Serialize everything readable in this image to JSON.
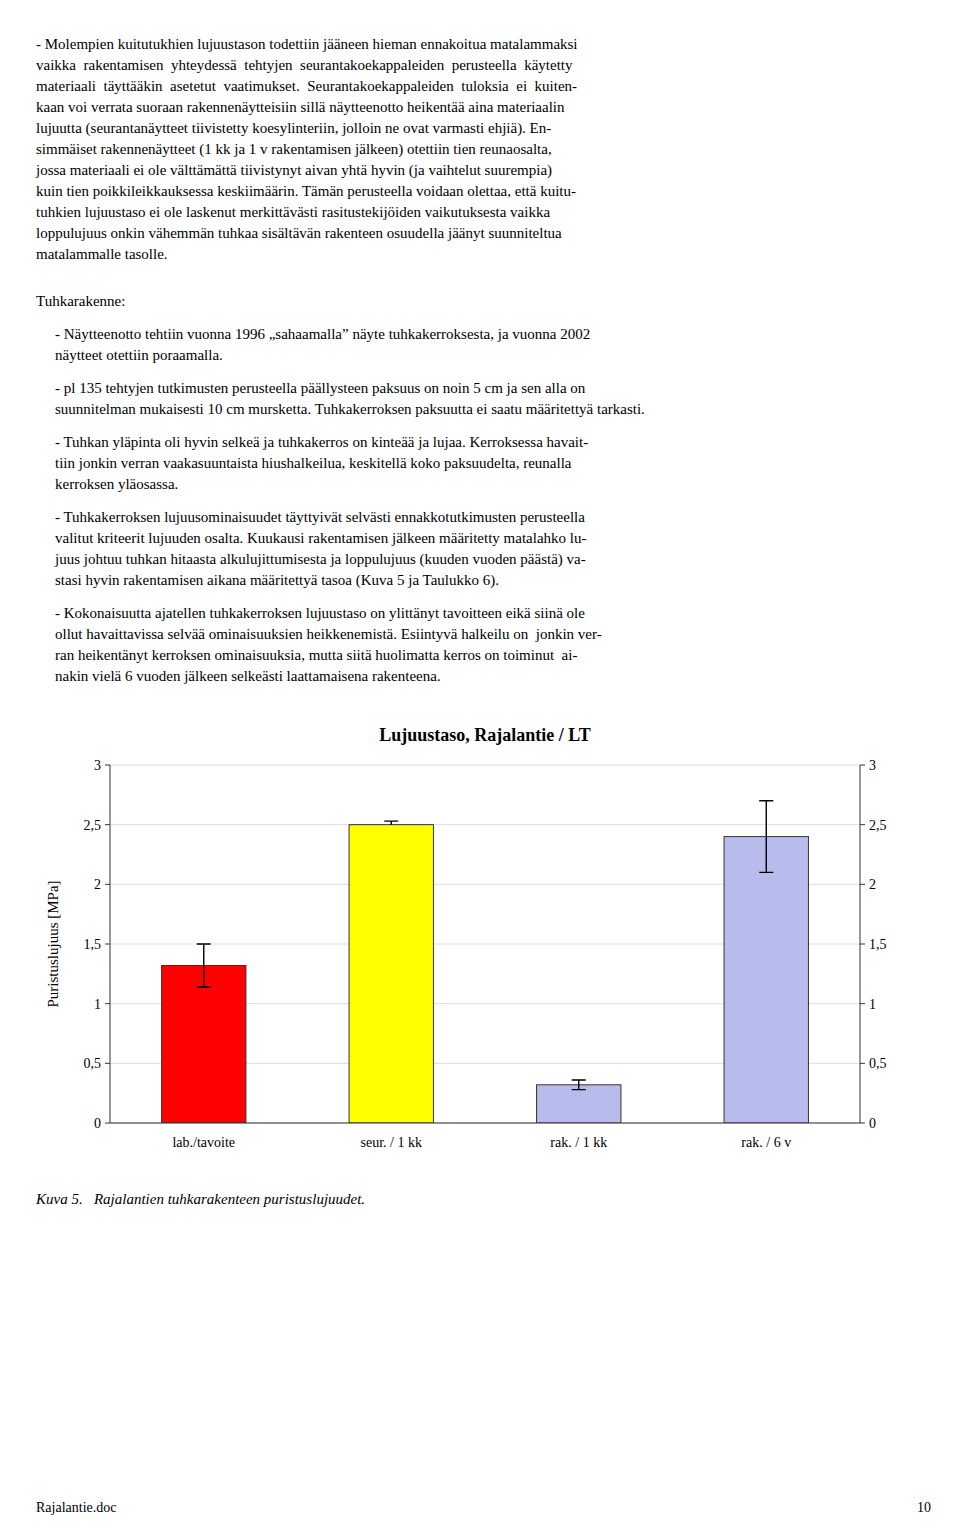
{
  "paragraph_lines": [
    "- Molempien kuitutukhien lujuustason todettiin jääneen hieman ennakoitua matalammaksi",
    "vaikka  rakentamisen  yhteydessä  tehtyjen  seurantakoekappaleiden  perusteella  käytetty",
    "materiaali  täyttääkin  asetetut  vaatimukset.  Seurantakoekappaleiden  tuloksia  ei  kuiten-",
    "kaan voi verrata suoraan rakennenäytteisiin sillä näytteenotto heikentää aina materiaalin",
    "lujuutta (seurantanäytteet tiivistetty koesylinteriin, jolloin ne ovat varmasti ehjiä). En-",
    "simmäiset rakennenäytteet (1 kk ja 1 v rakentamisen jälkeen) otettiin tien reunaosalta,",
    "jossa materiaali ei ole välttämättä tiivistynyt aivan yhtä hyvin (ja vaihtelut suurempia)",
    "kuin tien poikkileikkauksessa keskiimäärin. Tämän perusteella voidaan olettaa, että kuitu-",
    "tuhkien lujuustaso ei ole laskenut merkittävästi rasitustekijöiden vaikutuksesta vaikka",
    "loppulujuus onkin vähemmän tuhkaa sisältävän rakenteen osuudella jäänyt suunniteltua",
    "matalammalle tasolle."
  ],
  "section_header": "Tuhkarakenne:",
  "bullets": [
    [
      "- Näytteenotto tehtiin vuonna 1996 „sahaamalla” näyte tuhkakerroksesta, ja vuonna 2002",
      "näytteet otettiin poraamalla."
    ],
    [
      "- pl 135 tehtyjen tutkimusten perusteella päällysteen paksuus on noin 5 cm ja sen alla on",
      "suunnitelman mukaisesti 10 cm mursketta. Tuhkakerroksen paksuutta ei saatu määritettyä tarkasti."
    ],
    [
      "- Tuhkan yläpinta oli hyvin selkeä ja tuhkakerros on kinteää ja lujaa. Kerroksessa havait-",
      "tiin jonkin verran vaakasuuntaista hiushalkeilua, keskitellä koko paksuudelta, reunalla",
      "kerroksen yläosassa."
    ],
    [
      "- Tuhkakerroksen lujuusominaisuudet täyttyivät selvästi ennakkotutkimusten perusteella",
      "valitut kriteerit lujuuden osalta. Kuukausi rakentamisen jälkeen määritetty matalahko lu-",
      "juus johtuu tuhkan hitaasta alkulujittumisesta ja loppulujuus (kuuden vuoden päästä) va-",
      "stasi hyvin rakentamisen aikana määritettyä tasoa (Kuva 5 ja Taulukko 6)."
    ],
    [
      "- Kokonaisuutta ajatellen tuhkakerroksen lujuustaso on ylittänyt tavoitteen eikä siinä ole",
      "ollut havaittavissa selvää ominaisuuksien heikkenemistä. Esiintyvä halkeilu on  jonkin ver-",
      "ran heikentänyt kerroksen ominaisuuksia, mutta siitä huolimatta kerros on toiminut  ai-",
      "nakin vielä 6 vuoden jälkeen selkeästi laattamaisena rakenteena."
    ]
  ],
  "caption": "Kuva 5.   Rajalantien tuhkarakenteen puristuslujuudet.",
  "footer_left": "Rajalantie.doc",
  "footer_right": "10",
  "chart_data": {
    "type": "bar",
    "title": "Lujuustaso, Rajalantie / LT",
    "categories": [
      "lab./tavoite",
      "seur. / 1 kk",
      "rak. / 1 kk",
      "rak. / 6 v"
    ],
    "values": [
      1.32,
      2.5,
      0.32,
      2.4
    ],
    "colors": [
      "#ff0000",
      "#ffff00",
      "#b8bcec",
      "#b8bcec"
    ],
    "errors_lower": [
      0.18,
      null,
      0.04,
      0.3
    ],
    "errors_upper": [
      0.18,
      0.03,
      0.04,
      0.3
    ],
    "ylabel": "Puristuslujuus [MPa]",
    "ylim": [
      0,
      3
    ],
    "yticks": [
      0,
      {
        "value": 0.5,
        "label": "0,5"
      },
      1,
      {
        "value": 1.5,
        "label": "1,5"
      },
      2,
      {
        "value": 2.5,
        "label": "2,5"
      },
      3
    ],
    "grid": true
  }
}
